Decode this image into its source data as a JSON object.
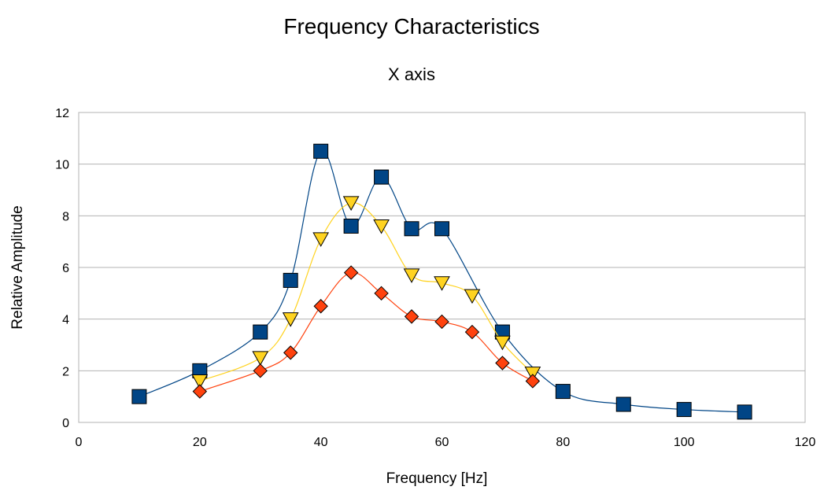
{
  "chart_data": {
    "type": "scatter",
    "title": "Frequency Characteristics",
    "subtitle": "X axis",
    "xlabel": "Frequency [Hz]",
    "ylabel": "Relative Amplitude",
    "xlim": [
      0,
      120
    ],
    "ylim": [
      0,
      12
    ],
    "x_ticks": [
      "0",
      "20",
      "40",
      "60",
      "80",
      "100",
      "120"
    ],
    "y_ticks": [
      "0",
      "2",
      "4",
      "6",
      "8",
      "10",
      "12"
    ],
    "grid": "horizontal",
    "legend": "none",
    "series": [
      {
        "marker": "square",
        "color": "#004586",
        "line": "smooth",
        "points": [
          [
            10,
            1.0
          ],
          [
            20,
            2.0
          ],
          [
            30,
            3.5
          ],
          [
            35,
            5.5
          ],
          [
            40,
            10.5
          ],
          [
            45,
            7.6
          ],
          [
            50,
            9.5
          ],
          [
            55,
            7.5
          ],
          [
            60,
            7.5
          ],
          [
            70,
            3.5
          ],
          [
            80,
            1.2
          ],
          [
            90,
            0.7
          ],
          [
            100,
            0.5
          ],
          [
            110,
            0.4
          ]
        ]
      },
      {
        "marker": "triangle-down",
        "color": "#ffd320",
        "line": "smooth",
        "points": [
          [
            20,
            1.6
          ],
          [
            30,
            2.5
          ],
          [
            35,
            4.0
          ],
          [
            40,
            7.1
          ],
          [
            45,
            8.5
          ],
          [
            50,
            7.6
          ],
          [
            55,
            5.7
          ],
          [
            60,
            5.4
          ],
          [
            65,
            4.9
          ],
          [
            70,
            3.1
          ],
          [
            75,
            1.9
          ]
        ]
      },
      {
        "marker": "diamond",
        "color": "#ff420e",
        "line": "smooth",
        "points": [
          [
            20,
            1.2
          ],
          [
            30,
            2.0
          ],
          [
            35,
            2.7
          ],
          [
            40,
            4.5
          ],
          [
            45,
            5.8
          ],
          [
            50,
            5.0
          ],
          [
            55,
            4.1
          ],
          [
            60,
            3.9
          ],
          [
            65,
            3.5
          ],
          [
            70,
            2.3
          ],
          [
            75,
            1.6
          ]
        ]
      }
    ]
  }
}
